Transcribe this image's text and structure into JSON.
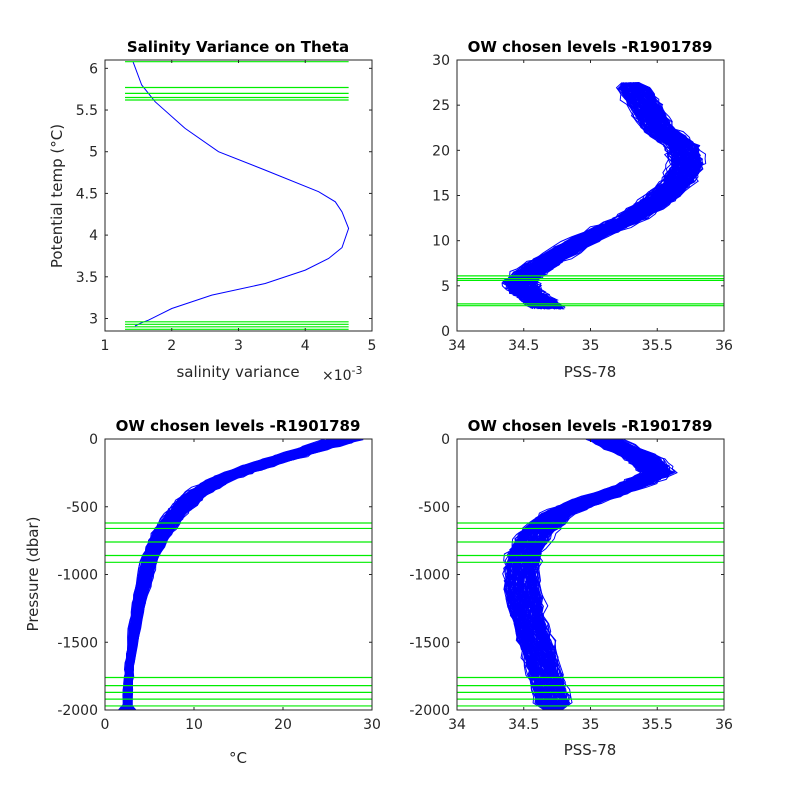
{
  "chart_data": [
    {
      "type": "line",
      "title": "Salinity Variance on Theta",
      "xlabel": "salinity variance",
      "x_exponent_label": "×10",
      "x_exponent_power": "-3",
      "ylabel": "Potential temp (°C)",
      "xlim": [
        1,
        5
      ],
      "ylim": [
        2.85,
        6.1
      ],
      "xticks": [
        1,
        2,
        3,
        4,
        5
      ],
      "yticks": [
        3,
        3.5,
        4,
        4.5,
        5,
        5.5,
        6
      ],
      "xtick_labels": [
        "1",
        "2",
        "3",
        "4",
        "5"
      ],
      "ytick_labels": [
        "3",
        "3.5",
        "4",
        "4.5",
        "5",
        "5.5",
        "6"
      ],
      "y_reversed": false,
      "grid": false,
      "series": [
        {
          "color": "#0000ff",
          "x": [
            1.42,
            1.55,
            1.75,
            2.2,
            2.7,
            3.4,
            4.2,
            4.45,
            4.55,
            4.65,
            4.55,
            4.35,
            4.0,
            3.4,
            2.6,
            2.0,
            1.8,
            1.65,
            1.55,
            1.45
          ],
          "y": [
            6.08,
            5.8,
            5.6,
            5.28,
            5.0,
            4.78,
            4.52,
            4.4,
            4.28,
            4.08,
            3.85,
            3.72,
            3.58,
            3.42,
            3.28,
            3.12,
            3.04,
            2.98,
            2.95,
            2.91
          ]
        }
      ],
      "hlines": {
        "color": "#00ee00",
        "values": [
          6.08,
          5.77,
          5.7,
          5.65,
          5.62,
          2.96,
          2.93,
          2.9,
          2.87
        ],
        "x_extent": [
          1.3,
          4.65
        ]
      }
    },
    {
      "type": "line",
      "title": "OW chosen levels -R1901789",
      "xlabel": "PSS-78",
      "ylabel": "",
      "xlim": [
        34,
        36
      ],
      "ylim": [
        0,
        30
      ],
      "xticks": [
        34,
        34.5,
        35,
        35.5,
        36
      ],
      "yticks": [
        0,
        5,
        10,
        15,
        20,
        25,
        30
      ],
      "xtick_labels": [
        "34",
        "34.5",
        "35",
        "35.5",
        "36"
      ],
      "ytick_labels": [
        "0",
        "5",
        "10",
        "15",
        "20",
        "25",
        "30"
      ],
      "y_reversed": false,
      "grid": false,
      "profile_count": 150,
      "mean_profile": {
        "color": "#0000ff",
        "x": [
          34.68,
          34.6,
          34.5,
          34.47,
          34.55,
          34.7,
          35.0,
          35.3,
          35.5,
          35.65,
          35.72,
          35.68,
          35.5,
          35.4,
          35.3
        ],
        "y": [
          2.5,
          3.5,
          4.5,
          5.5,
          6.5,
          8.0,
          10.5,
          12.5,
          14.5,
          16.5,
          18.5,
          20.5,
          22.5,
          25.0,
          27.5
        ]
      },
      "hlines": {
        "color": "#00ee00",
        "values": [
          6.1,
          5.8,
          5.6,
          3.0,
          2.8
        ],
        "x_extent": [
          34,
          36
        ]
      }
    },
    {
      "type": "line",
      "title": "OW chosen levels -R1901789",
      "xlabel": "°C",
      "ylabel": "Pressure (dbar)",
      "xlim": [
        0,
        30
      ],
      "ylim": [
        -2000,
        0
      ],
      "xticks": [
        0,
        10,
        20,
        30
      ],
      "yticks": [
        0,
        -500,
        -1000,
        -1500,
        -2000
      ],
      "xtick_labels": [
        "0",
        "10",
        "20",
        "30"
      ],
      "ytick_labels": [
        "0",
        "-500",
        "-1000",
        "-1500",
        "-2000"
      ],
      "y_reversed": false,
      "grid": false,
      "profile_count": 150,
      "mean_profile": {
        "color": "#0000ff",
        "x": [
          27.0,
          22.0,
          17.0,
          13.0,
          10.0,
          8.0,
          6.3,
          5.0,
          4.0,
          3.3,
          2.8,
          2.6,
          2.5
        ],
        "y": [
          0,
          -100,
          -200,
          -300,
          -420,
          -550,
          -700,
          -900,
          -1150,
          -1400,
          -1650,
          -1850,
          -2000
        ]
      },
      "hlines": {
        "color": "#00ee00",
        "values": [
          -620,
          -660,
          -760,
          -860,
          -910,
          -1760,
          -1820,
          -1870,
          -1920,
          -1970
        ],
        "x_extent": [
          0,
          30
        ]
      }
    },
    {
      "type": "line",
      "title": "OW chosen levels -R1901789",
      "xlabel": "PSS-78",
      "ylabel": "",
      "xlim": [
        34,
        36
      ],
      "ylim": [
        -2000,
        0
      ],
      "xticks": [
        34,
        34.5,
        35,
        35.5,
        36
      ],
      "yticks": [
        0,
        -500,
        -1000,
        -1500,
        -2000
      ],
      "xtick_labels": [
        "34",
        "34.5",
        "35",
        "35.5",
        "36"
      ],
      "ytick_labels": [
        "0",
        "-500",
        "-1000",
        "-1500",
        "-2000"
      ],
      "y_reversed": false,
      "grid": false,
      "profile_count": 150,
      "mean_profile": {
        "color": "#0000ff",
        "x": [
          35.1,
          35.4,
          35.5,
          35.3,
          35.0,
          34.75,
          34.58,
          34.5,
          34.48,
          34.52,
          34.6,
          34.68,
          34.72
        ],
        "y": [
          0,
          -150,
          -250,
          -350,
          -450,
          -550,
          -700,
          -850,
          -1050,
          -1300,
          -1550,
          -1800,
          -2000
        ]
      },
      "hlines": {
        "color": "#00ee00",
        "values": [
          -620,
          -660,
          -760,
          -860,
          -910,
          -1760,
          -1820,
          -1870,
          -1920,
          -1970
        ],
        "x_extent": [
          34,
          36
        ]
      }
    }
  ]
}
